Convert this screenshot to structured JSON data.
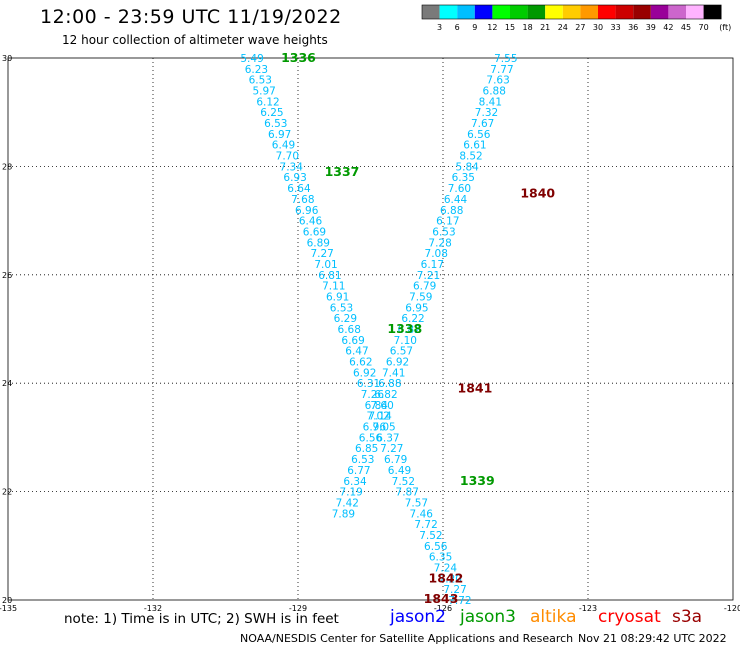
{
  "header": {
    "title": "12:00 - 23:59 UTC 11/19/2022",
    "subtitle": "12 hour collection of altimeter wave heights"
  },
  "colorbar": {
    "labels": [
      "3",
      "6",
      "9",
      "12",
      "15",
      "18",
      "21",
      "24",
      "27",
      "30",
      "33",
      "36",
      "39",
      "42",
      "45",
      "70"
    ],
    "unit": "(ft)",
    "colors": [
      "#7a7a7a",
      "#00ffff",
      "#00bfff",
      "#0000ff",
      "#00ff00",
      "#00cc00",
      "#009900",
      "#ffff00",
      "#ffcc00",
      "#ff9900",
      "#ff0000",
      "#cc0000",
      "#990000",
      "#990099",
      "#cc66cc",
      "#ffb3ff",
      "#000000"
    ]
  },
  "footer": {
    "note": "note:  1) Time is in UTC; 2) SWH is in feet",
    "satellites": [
      {
        "name": "jason2",
        "color": "#0000ff"
      },
      {
        "name": "jason3",
        "color": "#009900"
      },
      {
        "name": "altika",
        "color": "#ff8c00"
      },
      {
        "name": "cryosat",
        "color": "#ff0000"
      },
      {
        "name": "s3a",
        "color": "#990000"
      }
    ],
    "credit": "NOAA/NESDIS Center for Satellite Applications and Research",
    "timestamp": "Nov 21 08:29:42 UTC 2022"
  },
  "chart_data": {
    "type": "scatter",
    "xlim": [
      -135,
      -120
    ],
    "ylim": [
      20,
      30
    ],
    "x_ticks": [
      "-135",
      "-132",
      "-129",
      "-126",
      "-123",
      "-120"
    ],
    "y_ticks": [
      "20",
      "22",
      "24",
      "26",
      "28",
      "30"
    ],
    "grid": true,
    "value_color": "#00bfff",
    "series": [
      {
        "name": "jason3",
        "values": [
          {
            "x": -129.95,
            "y": 30.0,
            "v": "5.49"
          },
          {
            "x": -129.86,
            "y": 29.8,
            "v": "6.23"
          },
          {
            "x": -129.78,
            "y": 29.6,
            "v": "6.53"
          },
          {
            "x": -129.7,
            "y": 29.4,
            "v": "5.97"
          },
          {
            "x": -129.62,
            "y": 29.2,
            "v": "6.12"
          },
          {
            "x": -129.54,
            "y": 29.0,
            "v": "6.25"
          },
          {
            "x": -129.46,
            "y": 28.8,
            "v": "6.53"
          },
          {
            "x": -129.38,
            "y": 28.6,
            "v": "6.97"
          },
          {
            "x": -129.3,
            "y": 28.4,
            "v": "6.49"
          },
          {
            "x": -129.22,
            "y": 28.2,
            "v": "7.70"
          },
          {
            "x": -129.14,
            "y": 28.0,
            "v": "7.34"
          },
          {
            "x": -129.06,
            "y": 27.8,
            "v": "6.93"
          },
          {
            "x": -128.98,
            "y": 27.6,
            "v": "6.64"
          },
          {
            "x": -128.9,
            "y": 27.4,
            "v": "7.68"
          },
          {
            "x": -128.82,
            "y": 27.2,
            "v": "6.96"
          },
          {
            "x": -128.74,
            "y": 27.0,
            "v": "6.46"
          },
          {
            "x": -128.66,
            "y": 26.8,
            "v": "6.69"
          },
          {
            "x": -128.58,
            "y": 26.6,
            "v": "6.89"
          },
          {
            "x": -128.5,
            "y": 26.4,
            "v": "7.27"
          },
          {
            "x": -128.42,
            "y": 26.2,
            "v": "7.01"
          },
          {
            "x": -128.34,
            "y": 26.0,
            "v": "6.81"
          },
          {
            "x": -128.26,
            "y": 25.8,
            "v": "7.11"
          },
          {
            "x": -128.18,
            "y": 25.6,
            "v": "6.91"
          },
          {
            "x": -128.1,
            "y": 25.4,
            "v": "6.53"
          },
          {
            "x": -128.02,
            "y": 25.2,
            "v": "6.29"
          },
          {
            "x": -127.94,
            "y": 25.0,
            "v": "6.68"
          },
          {
            "x": -127.86,
            "y": 24.8,
            "v": "6.69"
          },
          {
            "x": -127.78,
            "y": 24.6,
            "v": "6.47"
          },
          {
            "x": -127.7,
            "y": 24.4,
            "v": "6.62"
          },
          {
            "x": -127.62,
            "y": 24.2,
            "v": "6.92"
          },
          {
            "x": -127.54,
            "y": 24.0,
            "v": "6.31"
          },
          {
            "x": -127.46,
            "y": 23.8,
            "v": "7.26"
          },
          {
            "x": -127.38,
            "y": 23.6,
            "v": "6.84"
          },
          {
            "x": -127.3,
            "y": 23.4,
            "v": "7.14"
          },
          {
            "x": -127.22,
            "y": 23.2,
            "v": "7.05"
          },
          {
            "x": -127.14,
            "y": 23.0,
            "v": "6.37"
          },
          {
            "x": -127.06,
            "y": 22.8,
            "v": "7.27"
          },
          {
            "x": -126.98,
            "y": 22.6,
            "v": "6.79"
          },
          {
            "x": -126.9,
            "y": 22.4,
            "v": "6.49"
          },
          {
            "x": -126.82,
            "y": 22.2,
            "v": "7.52"
          },
          {
            "x": -126.74,
            "y": 22.0,
            "v": "7.87"
          }
        ]
      },
      {
        "name": "jason3",
        "values": [
          {
            "x": -124.7,
            "y": 30.0,
            "v": "7.55"
          },
          {
            "x": -124.78,
            "y": 29.8,
            "v": "7.77"
          },
          {
            "x": -124.86,
            "y": 29.6,
            "v": "7.63"
          },
          {
            "x": -124.94,
            "y": 29.4,
            "v": "6.88"
          },
          {
            "x": -125.02,
            "y": 29.2,
            "v": "8.41"
          },
          {
            "x": -125.1,
            "y": 29.0,
            "v": "7.32"
          },
          {
            "x": -125.18,
            "y": 28.8,
            "v": "7.67"
          },
          {
            "x": -125.26,
            "y": 28.6,
            "v": "6.56"
          },
          {
            "x": -125.34,
            "y": 28.4,
            "v": "6.61"
          },
          {
            "x": -125.42,
            "y": 28.2,
            "v": "8.52"
          },
          {
            "x": -125.5,
            "y": 28.0,
            "v": "5.84"
          },
          {
            "x": -125.58,
            "y": 27.8,
            "v": "6.35"
          },
          {
            "x": -125.66,
            "y": 27.6,
            "v": "7.60"
          },
          {
            "x": -125.74,
            "y": 27.4,
            "v": "6.44"
          },
          {
            "x": -125.82,
            "y": 27.2,
            "v": "6.88"
          },
          {
            "x": -125.9,
            "y": 27.0,
            "v": "6.17"
          },
          {
            "x": -125.98,
            "y": 26.8,
            "v": "6.53"
          },
          {
            "x": -126.06,
            "y": 26.6,
            "v": "7.28"
          },
          {
            "x": -126.14,
            "y": 26.4,
            "v": "7.08"
          },
          {
            "x": -126.22,
            "y": 26.2,
            "v": "6.17"
          },
          {
            "x": -126.3,
            "y": 26.0,
            "v": "7.21"
          },
          {
            "x": -126.38,
            "y": 25.8,
            "v": "6.79"
          },
          {
            "x": -126.46,
            "y": 25.6,
            "v": "7.59"
          },
          {
            "x": -126.54,
            "y": 25.4,
            "v": "6.95"
          },
          {
            "x": -126.62,
            "y": 25.2,
            "v": "6.22"
          },
          {
            "x": -126.7,
            "y": 25.0,
            "v": "6.82"
          },
          {
            "x": -126.78,
            "y": 24.8,
            "v": "7.10"
          },
          {
            "x": -126.86,
            "y": 24.6,
            "v": "6.57"
          },
          {
            "x": -126.94,
            "y": 24.4,
            "v": "6.92"
          },
          {
            "x": -127.02,
            "y": 24.2,
            "v": "7.41"
          },
          {
            "x": -127.1,
            "y": 24.0,
            "v": "6.88"
          },
          {
            "x": -127.18,
            "y": 23.8,
            "v": "6.82"
          },
          {
            "x": -127.26,
            "y": 23.6,
            "v": "7.60"
          },
          {
            "x": -127.34,
            "y": 23.4,
            "v": "7.02"
          },
          {
            "x": -127.42,
            "y": 23.2,
            "v": "6.96"
          },
          {
            "x": -127.5,
            "y": 23.0,
            "v": "6.56"
          },
          {
            "x": -127.58,
            "y": 22.8,
            "v": "6.85"
          },
          {
            "x": -127.66,
            "y": 22.6,
            "v": "6.53"
          },
          {
            "x": -127.74,
            "y": 22.4,
            "v": "6.77"
          },
          {
            "x": -127.82,
            "y": 22.2,
            "v": "6.34"
          },
          {
            "x": -127.9,
            "y": 22.0,
            "v": "7.19"
          },
          {
            "x": -127.98,
            "y": 21.8,
            "v": "7.42"
          },
          {
            "x": -128.06,
            "y": 21.6,
            "v": "7.89"
          }
        ]
      },
      {
        "name": "jason3",
        "values": [
          {
            "x": -126.55,
            "y": 21.8,
            "v": "7.57"
          },
          {
            "x": -126.45,
            "y": 21.6,
            "v": "7.46"
          },
          {
            "x": -126.35,
            "y": 21.4,
            "v": "7.72"
          },
          {
            "x": -126.25,
            "y": 21.2,
            "v": "7.52"
          },
          {
            "x": -126.15,
            "y": 21.0,
            "v": "6.56"
          },
          {
            "x": -126.05,
            "y": 20.8,
            "v": "6.35"
          },
          {
            "x": -125.95,
            "y": 20.6,
            "v": "7.24"
          },
          {
            "x": -125.85,
            "y": 20.4,
            "v": "7.20"
          },
          {
            "x": -125.75,
            "y": 20.2,
            "v": "7.27"
          },
          {
            "x": -125.65,
            "y": 20.0,
            "v": "7.72"
          }
        ]
      }
    ],
    "pass_labels": [
      {
        "text": "1336",
        "x": -129.35,
        "y": 30.0,
        "color": "#009900"
      },
      {
        "text": "1337",
        "x": -128.45,
        "y": 27.9,
        "color": "#009900"
      },
      {
        "text": "1338",
        "x": -127.15,
        "y": 25.0,
        "color": "#009900"
      },
      {
        "text": "1339",
        "x": -125.65,
        "y": 22.2,
        "color": "#009900"
      },
      {
        "text": "1840",
        "x": -124.4,
        "y": 27.5,
        "color": "#800000"
      },
      {
        "text": "1841",
        "x": -125.7,
        "y": 23.9,
        "color": "#800000"
      },
      {
        "text": "1842",
        "x": -126.3,
        "y": 20.4,
        "color": "#800000"
      },
      {
        "text": "1843",
        "x": -126.4,
        "y": 20.02,
        "color": "#800000"
      }
    ]
  }
}
